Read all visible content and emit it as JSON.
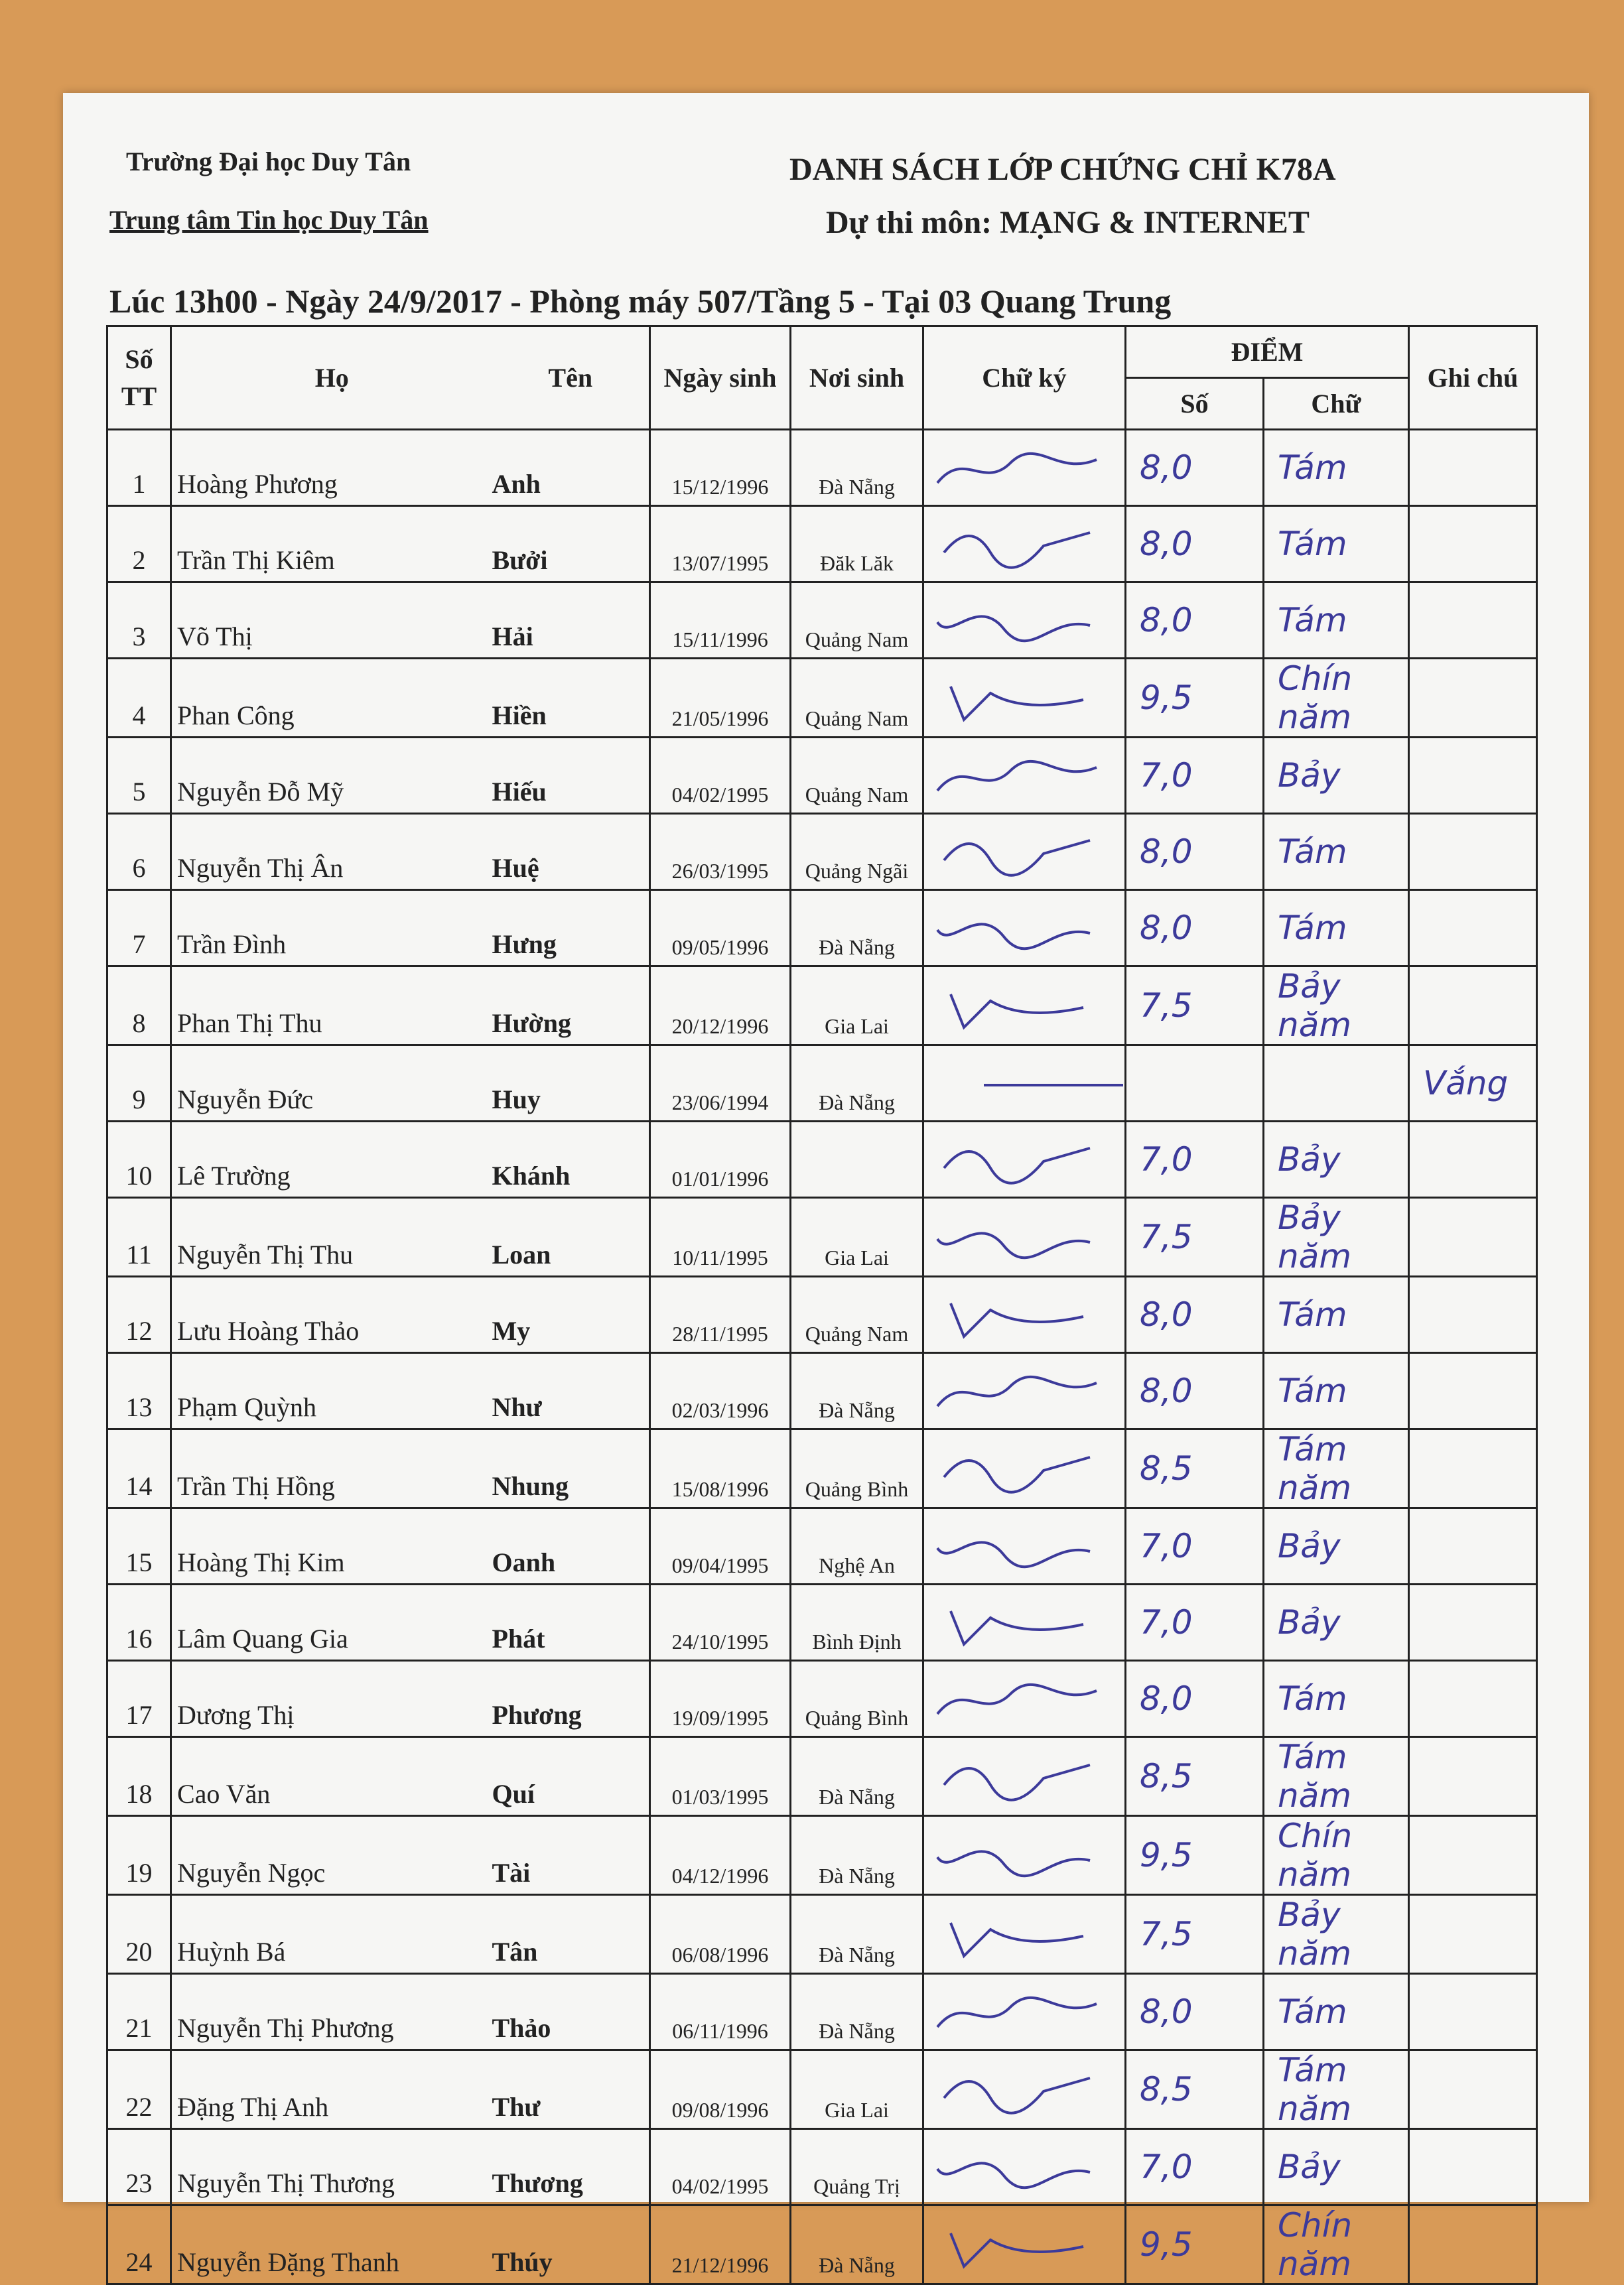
{
  "header": {
    "school": "Trường Đại học Duy Tân",
    "center": "Trung tâm Tin học Duy Tân",
    "title": "DANH SÁCH LỚP CHỨNG CHỈ K78A",
    "subject": "Dự thi môn: MẠNG & INTERNET",
    "session": "Lúc 13h00 - Ngày 24/9/2017 - Phòng máy 507/Tầng 5 - Tại 03 Quang Trung"
  },
  "columns": {
    "stt": "Số TT",
    "ho": "Họ",
    "ten": "Tên",
    "ngay_sinh": "Ngày sinh",
    "noi_sinh": "Nơi sinh",
    "chu_ky": "Chữ ký",
    "diem": "ĐIỂM",
    "so": "Số",
    "chu": "Chữ",
    "ghi_chu": "Ghi chú"
  },
  "ink_color": "#3c3a9a",
  "rows": [
    {
      "stt": "1",
      "ho": "Hoàng Phương",
      "ten": "Anh",
      "dob": "15/12/1996",
      "pob": "Đà Nẵng",
      "so": "8,0",
      "chu": "Tám",
      "note": ""
    },
    {
      "stt": "2",
      "ho": "Trần Thị Kiêm",
      "ten": "Bưởi",
      "dob": "13/07/1995",
      "pob": "Đăk Lăk",
      "so": "8,0",
      "chu": "Tám",
      "note": ""
    },
    {
      "stt": "3",
      "ho": "Võ Thị",
      "ten": "Hải",
      "dob": "15/11/1996",
      "pob": "Quảng Nam",
      "so": "8,0",
      "chu": "Tám",
      "note": ""
    },
    {
      "stt": "4",
      "ho": "Phan Công",
      "ten": "Hiền",
      "dob": "21/05/1996",
      "pob": "Quảng Nam",
      "so": "9,5",
      "chu": "Chín năm",
      "note": ""
    },
    {
      "stt": "5",
      "ho": "Nguyễn Đỗ Mỹ",
      "ten": "Hiếu",
      "dob": "04/02/1995",
      "pob": "Quảng Nam",
      "so": "7,0",
      "chu": "Bảy",
      "note": ""
    },
    {
      "stt": "6",
      "ho": "Nguyễn Thị Ân",
      "ten": "Huệ",
      "dob": "26/03/1995",
      "pob": "Quảng Ngãi",
      "so": "8,0",
      "chu": "Tám",
      "note": ""
    },
    {
      "stt": "7",
      "ho": "Trần Đình",
      "ten": "Hưng",
      "dob": "09/05/1996",
      "pob": "Đà Nẵng",
      "so": "8,0",
      "chu": "Tám",
      "note": ""
    },
    {
      "stt": "8",
      "ho": "Phan Thị Thu",
      "ten": "Hường",
      "dob": "20/12/1996",
      "pob": "Gia Lai",
      "so": "7,5",
      "chu": "Bảy năm",
      "note": ""
    },
    {
      "stt": "9",
      "ho": "Nguyễn Đức",
      "ten": "Huy",
      "dob": "23/06/1994",
      "pob": "Đà Nẵng",
      "so": "",
      "chu": "",
      "note": "Vắng"
    },
    {
      "stt": "10",
      "ho": "Lê Trường",
      "ten": "Khánh",
      "dob": "01/01/1996",
      "pob": "",
      "so": "7,0",
      "chu": "Bảy",
      "note": ""
    },
    {
      "stt": "11",
      "ho": "Nguyễn Thị Thu",
      "ten": "Loan",
      "dob": "10/11/1995",
      "pob": "Gia Lai",
      "so": "7,5",
      "chu": "Bảy năm",
      "note": ""
    },
    {
      "stt": "12",
      "ho": "Lưu Hoàng Thảo",
      "ten": "My",
      "dob": "28/11/1995",
      "pob": "Quảng Nam",
      "so": "8,0",
      "chu": "Tám",
      "note": ""
    },
    {
      "stt": "13",
      "ho": "Phạm Quỳnh",
      "ten": "Như",
      "dob": "02/03/1996",
      "pob": "Đà Nẵng",
      "so": "8,0",
      "chu": "Tám",
      "note": ""
    },
    {
      "stt": "14",
      "ho": "Trần Thị Hồng",
      "ten": "Nhung",
      "dob": "15/08/1996",
      "pob": "Quảng Bình",
      "so": "8,5",
      "chu": "Tám năm",
      "note": ""
    },
    {
      "stt": "15",
      "ho": "Hoàng Thị Kim",
      "ten": "Oanh",
      "dob": "09/04/1995",
      "pob": "Nghệ An",
      "so": "7,0",
      "chu": "Bảy",
      "note": ""
    },
    {
      "stt": "16",
      "ho": "Lâm Quang Gia",
      "ten": "Phát",
      "dob": "24/10/1995",
      "pob": "Bình Định",
      "so": "7,0",
      "chu": "Bảy",
      "note": ""
    },
    {
      "stt": "17",
      "ho": "Dương Thị",
      "ten": "Phương",
      "dob": "19/09/1995",
      "pob": "Quảng Bình",
      "so": "8,0",
      "chu": "Tám",
      "note": ""
    },
    {
      "stt": "18",
      "ho": "Cao Văn",
      "ten": "Quí",
      "dob": "01/03/1995",
      "pob": "Đà Nẵng",
      "so": "8,5",
      "chu": "Tám năm",
      "note": ""
    },
    {
      "stt": "19",
      "ho": "Nguyễn Ngọc",
      "ten": "Tài",
      "dob": "04/12/1996",
      "pob": "Đà Nẵng",
      "so": "9,5",
      "chu": "Chín năm",
      "note": ""
    },
    {
      "stt": "20",
      "ho": "Huỳnh Bá",
      "ten": "Tân",
      "dob": "06/08/1996",
      "pob": "Đà Nẵng",
      "so": "7,5",
      "chu": "Bảy năm",
      "note": ""
    },
    {
      "stt": "21",
      "ho": "Nguyễn Thị Phương",
      "ten": "Thảo",
      "dob": "06/11/1996",
      "pob": "Đà Nẵng",
      "so": "8,0",
      "chu": "Tám",
      "note": ""
    },
    {
      "stt": "22",
      "ho": "Đặng Thị Anh",
      "ten": "Thư",
      "dob": "09/08/1996",
      "pob": "Gia Lai",
      "so": "8,5",
      "chu": "Tám năm",
      "note": ""
    },
    {
      "stt": "23",
      "ho": "Nguyễn Thị Thương",
      "ten": "Thương",
      "dob": "04/02/1995",
      "pob": "Quảng Trị",
      "so": "7,0",
      "chu": "Bảy",
      "note": ""
    },
    {
      "stt": "24",
      "ho": "Nguyễn Đặng Thanh",
      "ten": "Thúy",
      "dob": "21/12/1996",
      "pob": "Đà Nẵng",
      "so": "9,5",
      "chu": "Chín năm",
      "note": ""
    }
  ]
}
